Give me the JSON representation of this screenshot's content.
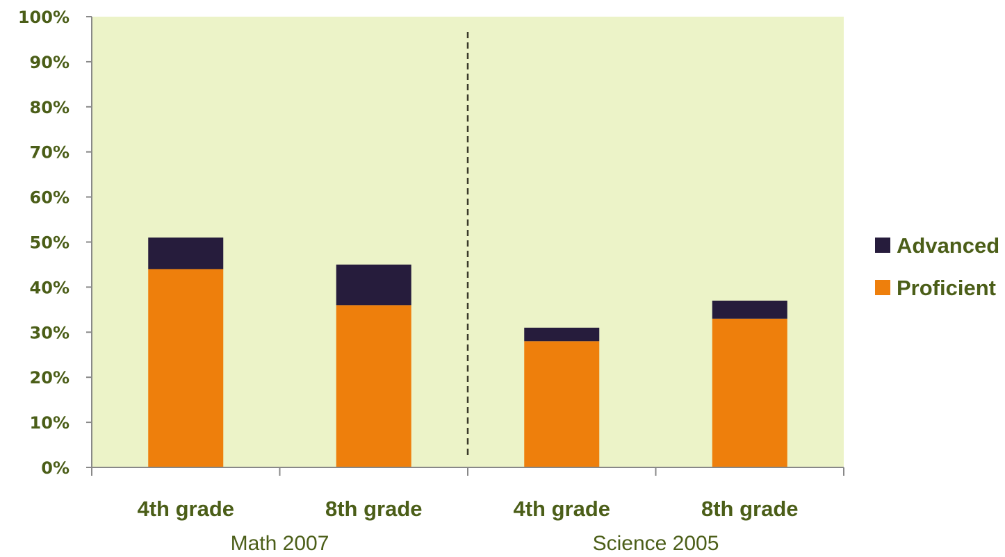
{
  "chart_data": {
    "type": "bar",
    "stacked": true,
    "categories": [
      "4th grade",
      "8th grade",
      "4th grade",
      "8th grade"
    ],
    "groups": [
      {
        "label": "Math 2007",
        "categories": [
          0,
          1
        ]
      },
      {
        "label": "Science 2005",
        "categories": [
          2,
          3
        ]
      }
    ],
    "series": [
      {
        "name": "Proficient",
        "values": [
          44,
          36,
          28,
          33
        ],
        "color": "#ee7f0c"
      },
      {
        "name": "Advanced",
        "values": [
          7,
          9,
          3,
          4
        ],
        "color": "#261c3c"
      }
    ],
    "ylim": [
      0,
      100
    ],
    "yticks": [
      "0%",
      "10%",
      "20%",
      "30%",
      "40%",
      "50%",
      "60%",
      "70%",
      "80%",
      "90%",
      "100%"
    ],
    "legend_position": "right",
    "plot_background": "#ecf3c8",
    "axis_text_color": "#4b5e18",
    "group_label_color": "#4b5e18",
    "separator": "dashed line between groups"
  }
}
